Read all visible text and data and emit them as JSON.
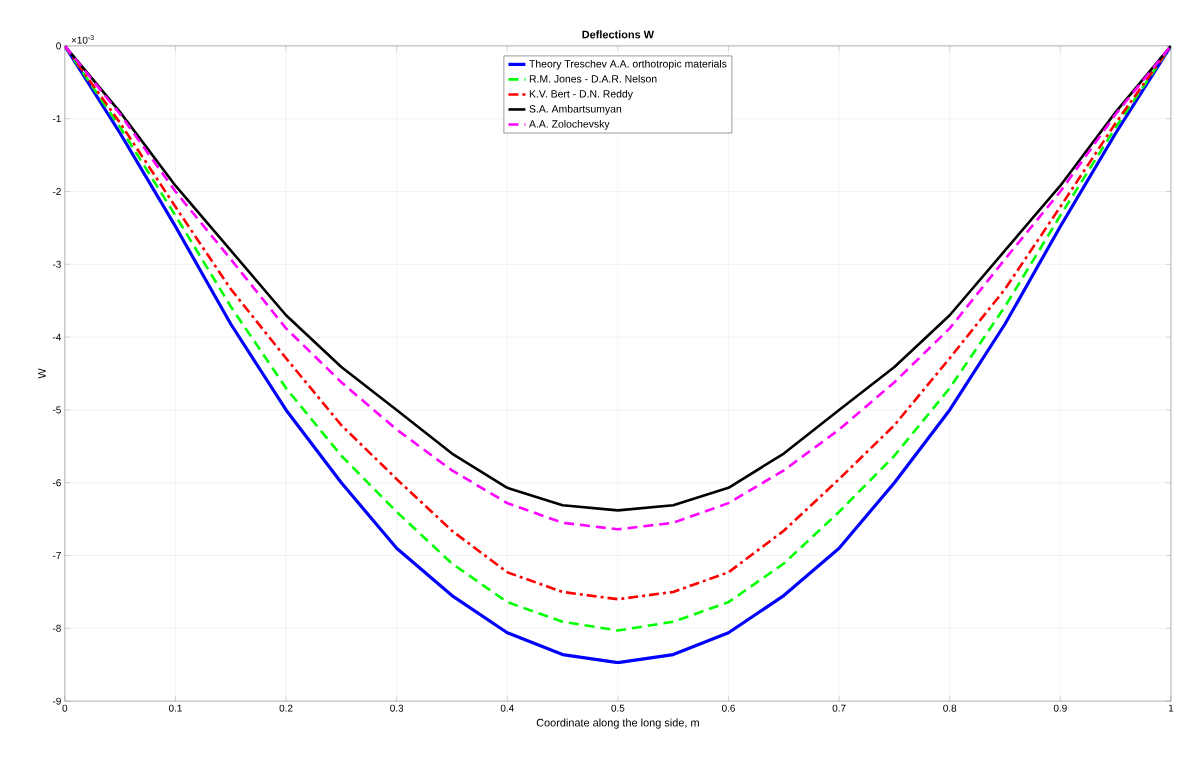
{
  "chart_data": {
    "type": "line",
    "title": "Deflections W",
    "xlabel": "Coordinate along the long side, m",
    "ylabel": "W",
    "annotations": [
      "×10$^{-3}$"
    ],
    "x": [
      0,
      0.05,
      0.1,
      0.15,
      0.2,
      0.25,
      0.3,
      0.35,
      0.4,
      0.45,
      0.5,
      0.55,
      0.6,
      0.65,
      0.7,
      0.75,
      0.8,
      0.85,
      0.9,
      0.95,
      1
    ],
    "series": [
      {
        "name": "Theory Treschev A.A. orthotropic materials",
        "color": "#0000ff",
        "line_style": "solid",
        "values": [
          0,
          -1.2,
          -2.48,
          -3.82,
          -5.0,
          -6.0,
          -6.9,
          -7.55,
          -8.06,
          -8.36,
          -8.47,
          -8.36,
          -8.06,
          -7.55,
          -6.9,
          -6.0,
          -5.0,
          -3.82,
          -2.48,
          -1.2,
          0
        ]
      },
      {
        "name": "R.M. Jones - D.A.R. Nelson",
        "color": "#00ff00",
        "line_style": "dashed",
        "values": [
          0,
          -1.12,
          -2.33,
          -3.58,
          -4.7,
          -5.63,
          -6.4,
          -7.11,
          -7.64,
          -7.91,
          -8.03,
          -7.91,
          -7.64,
          -7.11,
          -6.4,
          -5.63,
          -4.7,
          -3.58,
          -2.33,
          -1.12,
          0
        ]
      },
      {
        "name": "K.V. Bert - D.N. Reddy",
        "color": "#ff0000",
        "line_style": "dashdot",
        "values": [
          0,
          -1.06,
          -2.21,
          -3.34,
          -4.29,
          -5.21,
          -5.95,
          -6.66,
          -7.23,
          -7.5,
          -7.6,
          -7.5,
          -7.23,
          -6.66,
          -5.95,
          -5.21,
          -4.29,
          -3.34,
          -2.21,
          -1.06,
          0
        ]
      },
      {
        "name": "S.A. Ambartsumyan",
        "color": "#000000",
        "line_style": "solid",
        "values": [
          0,
          -0.91,
          -1.92,
          -2.81,
          -3.7,
          -4.41,
          -5.0,
          -5.6,
          -6.07,
          -6.31,
          -6.38,
          -6.31,
          -6.07,
          -5.6,
          -5.0,
          -4.41,
          -3.7,
          -2.81,
          -1.92,
          -0.91,
          0
        ]
      },
      {
        "name": "A.A. Zolochevsky",
        "color": "#ff00ff",
        "line_style": "dashed",
        "values": [
          0,
          -0.94,
          -2.0,
          -2.93,
          -3.88,
          -4.62,
          -5.27,
          -5.83,
          -6.28,
          -6.55,
          -6.64,
          -6.55,
          -6.28,
          -5.83,
          -5.27,
          -4.62,
          -3.88,
          -2.93,
          -2.0,
          -0.94,
          0
        ]
      }
    ],
    "xlim": [
      0,
      1
    ],
    "ylim": [
      -9,
      0
    ],
    "xticks": [
      0,
      0.1,
      0.2,
      0.3,
      0.4,
      0.5,
      0.6,
      0.7,
      0.8,
      0.9,
      1
    ],
    "yticks": [
      -9,
      -8,
      -7,
      -6,
      -5,
      -4,
      -3,
      -2,
      -1,
      0
    ],
    "grid": true,
    "legend": "top",
    "marker": "none"
  }
}
